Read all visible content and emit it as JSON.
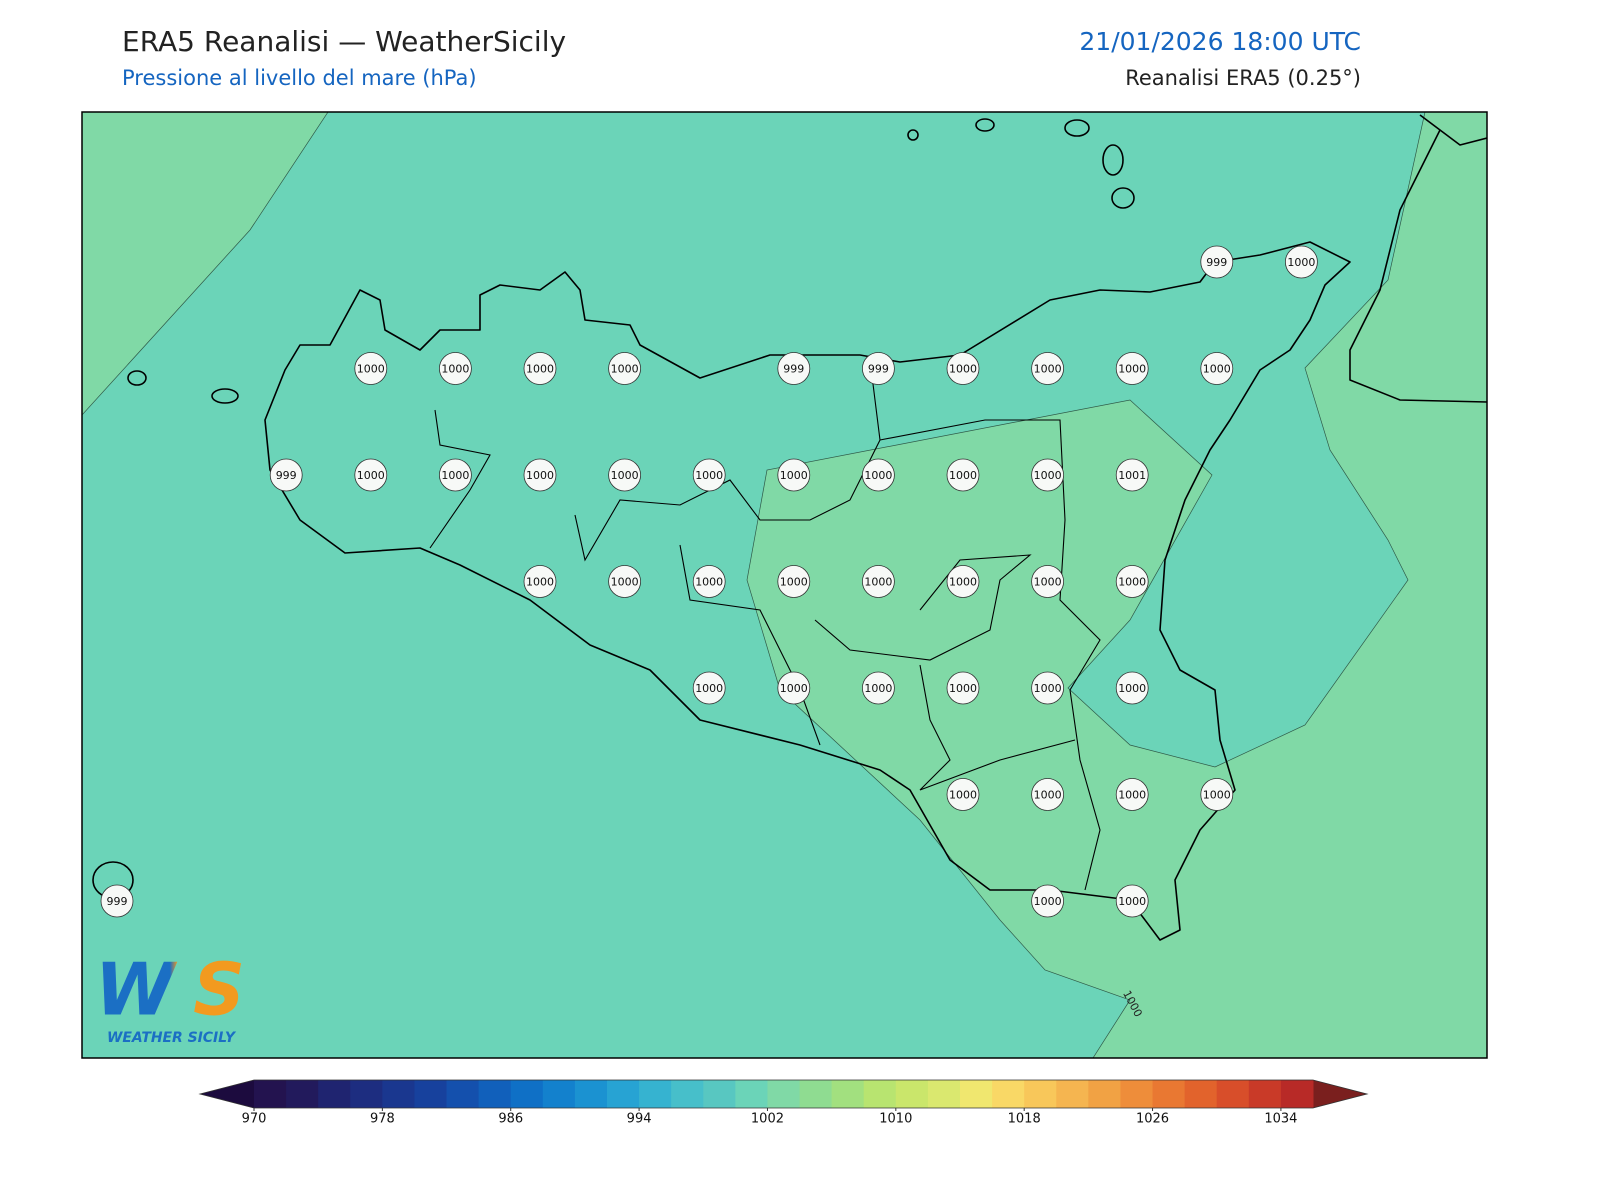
{
  "header": {
    "title": "ERA5 Reanalisi — WeatherSicily",
    "subtitle": "Pressione al livello del mare (hPa)",
    "datetime": "21/01/2026 18:00 UTC",
    "source": "Reanalisi ERA5 (0.25°)"
  },
  "map": {
    "station_values": [
      [
        null,
        null,
        null,
        null,
        null,
        null,
        null,
        null,
        null,
        null,
        null,
        null,
        null,
        999,
        1000
      ],
      [
        null,
        null,
        null,
        1000,
        1000,
        1000,
        1000,
        null,
        999,
        999,
        1000,
        1000,
        1000,
        1000,
        null
      ],
      [
        null,
        null,
        999,
        1000,
        1000,
        1000,
        1000,
        1000,
        1000,
        1000,
        1000,
        1000,
        1001,
        null,
        null
      ],
      [
        null,
        null,
        null,
        null,
        null,
        1000,
        1000,
        1000,
        1000,
        1000,
        1000,
        1000,
        1000,
        null,
        null
      ],
      [
        null,
        null,
        null,
        null,
        null,
        null,
        null,
        1000,
        1000,
        1000,
        1000,
        1000,
        1000,
        null,
        null
      ],
      [
        null,
        null,
        null,
        null,
        null,
        null,
        null,
        null,
        null,
        null,
        1000,
        1000,
        1000,
        1000,
        null
      ],
      [
        999,
        null,
        null,
        null,
        null,
        null,
        null,
        null,
        null,
        null,
        null,
        1000,
        1000,
        null,
        null
      ]
    ],
    "contour_label": 1000,
    "low_color": "#6bd4b8",
    "high_color": "#80d9a6"
  },
  "logo": {
    "mark": "WS",
    "name": "WEATHER SICILY"
  },
  "colorbar": {
    "lim": [
      970,
      1036
    ],
    "ticks": [
      970,
      978,
      986,
      994,
      1002,
      1010,
      1018,
      1026,
      1034
    ],
    "under_color": "#1c0b3e",
    "over_color": "#7a1f1e",
    "colors": [
      "#23134f",
      "#221a5c",
      "#1f2470",
      "#1d2d80",
      "#1a378f",
      "#17419d",
      "#1450ad",
      "#1160bb",
      "#0f70c6",
      "#1381cd",
      "#1b92d1",
      "#27a3d3",
      "#36b3d0",
      "#47bfca",
      "#58c7c1",
      "#6bd4b8",
      "#80d9a6",
      "#8fdc91",
      "#a2e07f",
      "#b8e470",
      "#cae66b",
      "#dae86f",
      "#f0e76f",
      "#f9d866",
      "#f8c75a",
      "#f5b550",
      "#f1a244",
      "#ee8d3a",
      "#e97832",
      "#e2632c",
      "#d84e2a",
      "#c93a28",
      "#b82a27"
    ]
  }
}
